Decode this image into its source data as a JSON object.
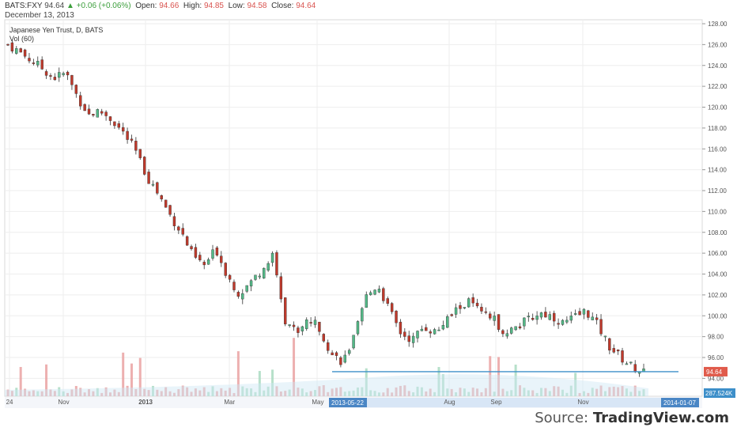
{
  "header": {
    "symbol": "BATS:FXY",
    "last": "94.64",
    "change": "+0.06 (+0.06%)",
    "open_label": "Open:",
    "open": "94.66",
    "high_label": "High:",
    "high": "94.85",
    "low_label": "Low:",
    "low": "94.58",
    "close_label": "Close:",
    "close": "94.64",
    "date": "December 13, 2013"
  },
  "legend": {
    "title": "Japanese Yen Trust, D, BATS",
    "vol": "Vol (60)"
  },
  "source": {
    "prefix": "Source: ",
    "brand": "TradingView.com"
  },
  "chart_data": {
    "type": "candlestick",
    "ylim": [
      92.6,
      128.3
    ],
    "y_ticks": [
      "128.00",
      "126.00",
      "124.00",
      "122.00",
      "120.00",
      "118.00",
      "116.00",
      "114.00",
      "112.00",
      "110.00",
      "108.00",
      "106.00",
      "104.00",
      "102.00",
      "100.00",
      "98.00",
      "96.00",
      "94.00"
    ],
    "x_ticks": [
      "24",
      "Nov",
      "2013",
      "Mar",
      "May",
      "Aug",
      "Sep",
      "Nov"
    ],
    "x_tick_highlights": [
      "2013-05-22",
      "2014-01-07"
    ],
    "price_label": "94.64",
    "volume_label": "287.524K",
    "price_line": 94.64,
    "colors": {
      "up": "#53b987",
      "down": "#c0392b",
      "vol_up": "#a9dbc1",
      "vol_down": "#eaa2a2",
      "price_label": "#e05b4b",
      "volume_label": "#3d8fc9",
      "line": "#3d8fc9"
    },
    "close_path": [
      126.0,
      125.3,
      124.5,
      123.7,
      122.8,
      123.3,
      121.0,
      119.3,
      119.6,
      118.8,
      117.5,
      115.9,
      113.4,
      111.7,
      109.7,
      108.0,
      105.7,
      104.8,
      106.4,
      103.8,
      102.1,
      103.2,
      104.5,
      105.8,
      99.2,
      98.5,
      99.7,
      98.8,
      96.3,
      95.6,
      98.0,
      101.8,
      103.0,
      100.5,
      98.3,
      97.7,
      99.0,
      98.4,
      99.6,
      100.8,
      101.4,
      100.1,
      99.7,
      98.4,
      98.9,
      99.6,
      100.3,
      100.0,
      99.3,
      99.8,
      100.5,
      99.1,
      97.1,
      96.0,
      95.1,
      94.64
    ]
  }
}
